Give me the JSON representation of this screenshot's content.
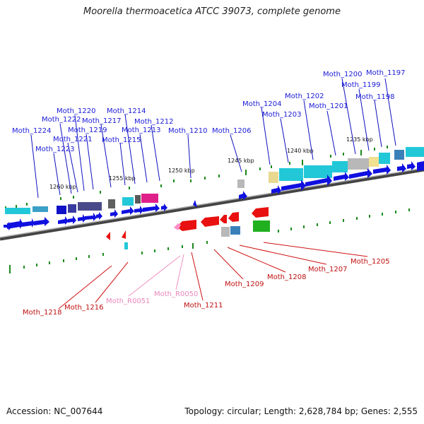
{
  "title": "Moorella thermoacetica ATCC 39073, complete genome",
  "footer": {
    "accession": "Accession: NC_007644",
    "topology": "Topology: circular; Length: 2,628,784 bp; Genes: 2,555"
  },
  "ticks": [
    "1260 kbp",
    "1255 kbp",
    "1250 kbp",
    "1245 kbp",
    "1240 kbp",
    "1235 kbp"
  ],
  "upper_labels": [
    "Moth_1224",
    "Moth_1223",
    "Moth_1222",
    "Moth_1221",
    "Moth_1220",
    "Moth_1219",
    "Moth_1217",
    "Moth_1215",
    "Moth_1214",
    "Moth_1213",
    "Moth_1212",
    "Moth_1210",
    "Moth_1206",
    "Moth_1204",
    "Moth_1203",
    "Moth_1202",
    "Moth_1201",
    "Moth_1200",
    "Moth_1199",
    "Moth_1198",
    "Moth_1197"
  ],
  "lower_labels": [
    "Moth_1218",
    "Moth_1216",
    "Moth_R0051",
    "Moth_R0050",
    "Moth_1211",
    "Moth_1209",
    "Moth_1208",
    "Moth_1207",
    "Moth_1205"
  ],
  "colors": {
    "forward": "#1010e0",
    "reverse": "#e81010",
    "rna": "#ff8fc8",
    "track": "#6f6f6f",
    "tick": "#1a8a1a"
  }
}
